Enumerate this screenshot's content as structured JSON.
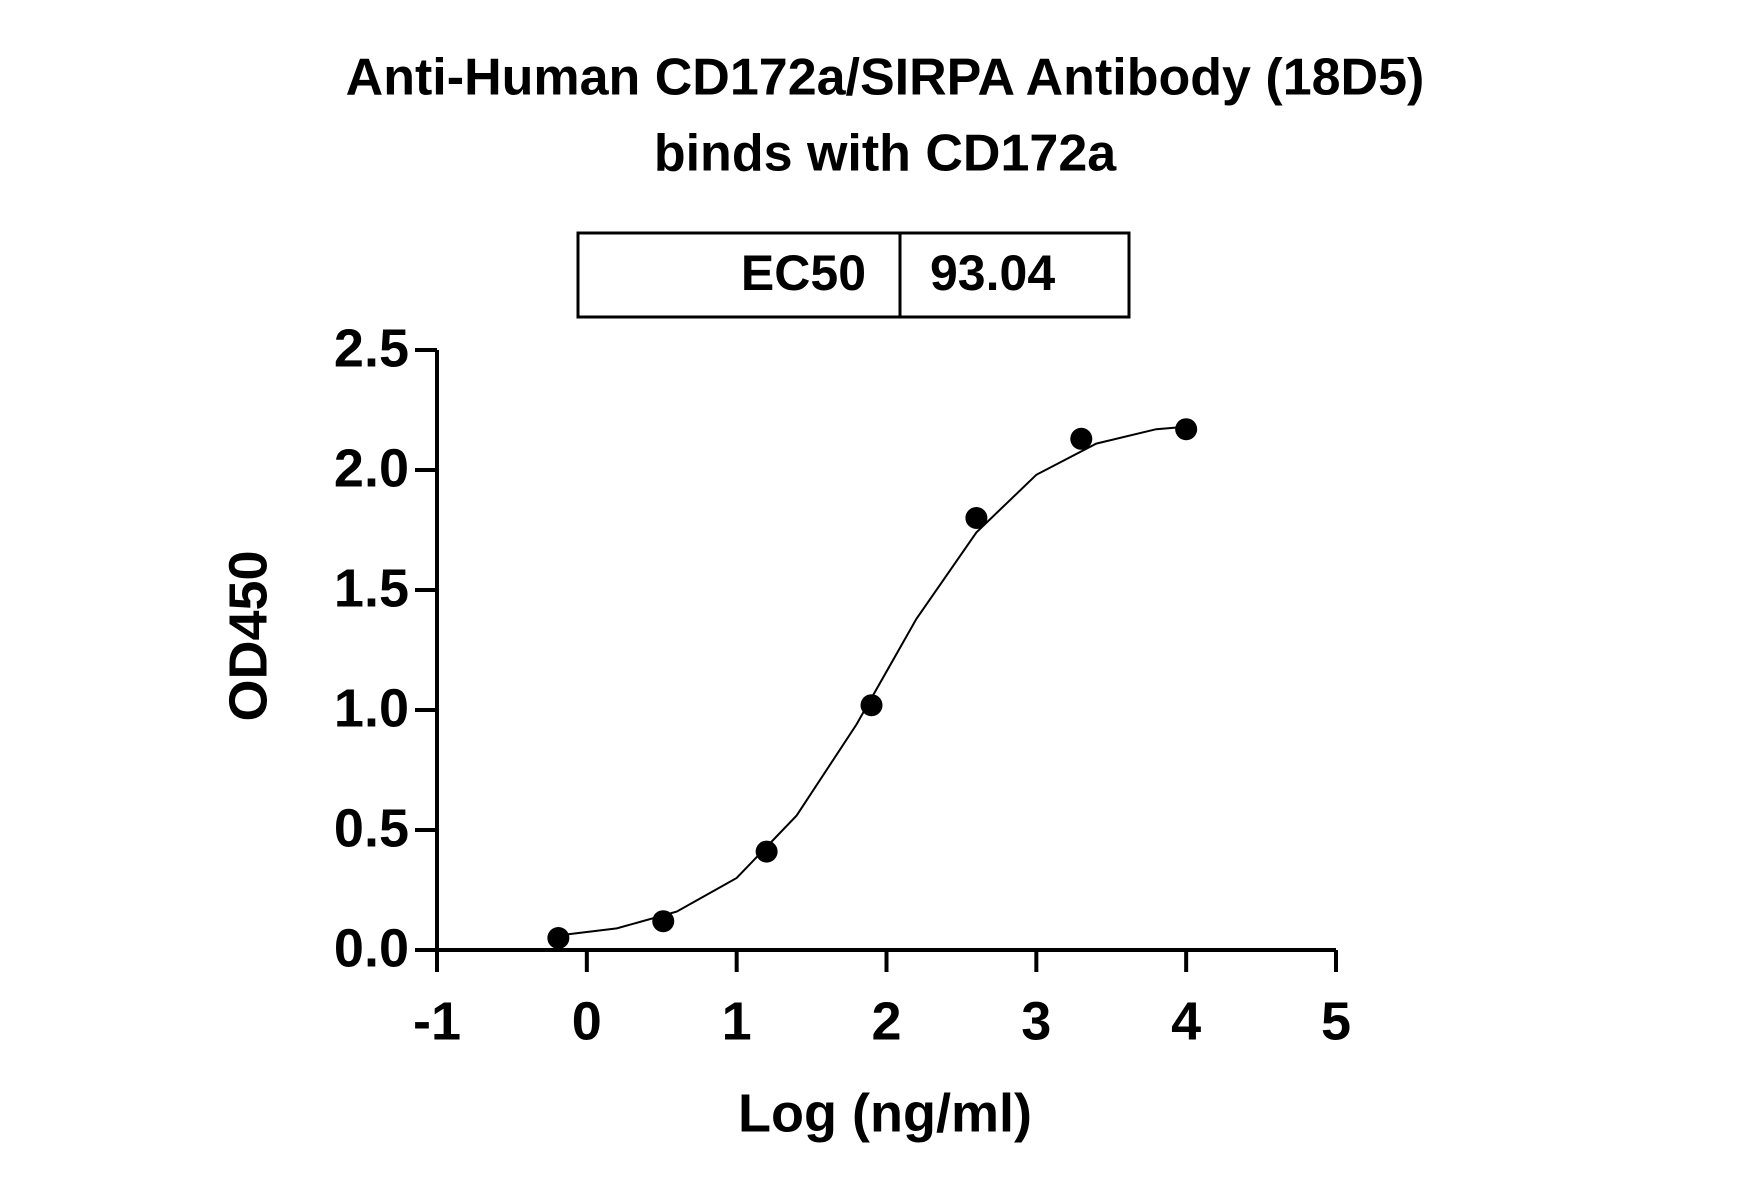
{
  "chart_data": {
    "type": "scatter",
    "title": "Anti-Human CD172a/SIRPA Antibody (18D5)",
    "subtitle": "binds with CD172a",
    "ec50": {
      "label": "EC50",
      "value": "93.04"
    },
    "x_label": "Log (ng/ml)",
    "y_label": "OD450",
    "x": [
      -0.19,
      0.51,
      1.2,
      1.9,
      2.6,
      3.3,
      4
    ],
    "values": [
      0.05,
      0.12,
      0.41,
      1.02,
      1.8,
      2.13,
      2.17
    ],
    "color": "#000000",
    "fit": {
      "x": [
        -0.2,
        0.2,
        0.6,
        1.0,
        1.4,
        1.8,
        2.2,
        2.6,
        3.0,
        3.4,
        3.8,
        4.0
      ],
      "values": [
        0.06,
        0.09,
        0.16,
        0.3,
        0.56,
        0.94,
        1.38,
        1.74,
        1.98,
        2.11,
        2.17,
        2.18
      ]
    },
    "xlim": [
      -1,
      5
    ],
    "ylim": [
      0,
      2.5
    ],
    "xticks": [
      -1,
      0,
      1,
      2,
      3,
      4,
      5
    ],
    "yticks": [
      {
        "value": 0,
        "label": "0.0"
      },
      0.5,
      {
        "value": 1,
        "label": "1.0"
      },
      1.5,
      {
        "value": 2,
        "label": "2.0"
      },
      2.5
    ]
  }
}
